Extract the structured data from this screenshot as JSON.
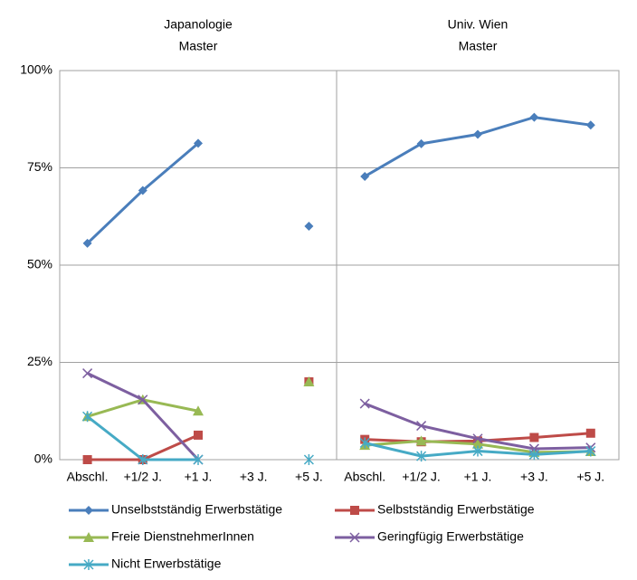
{
  "chart_data": {
    "type": "line",
    "categories": [
      "Abschl.",
      "+1/2 J.",
      "+1 J.",
      "+3 J.",
      "+5 J."
    ],
    "ylim": [
      0,
      100
    ],
    "yticks": [
      {
        "value": 0,
        "label": "0%"
      },
      {
        "value": 25,
        "label": "25%"
      },
      {
        "value": 50,
        "label": "50%"
      },
      {
        "value": 75,
        "label": "75%"
      },
      {
        "value": 100,
        "label": "100%"
      }
    ],
    "grid": true,
    "series": [
      {
        "name": "Unselbstständig Erwerbstätige",
        "color": "#4a7ebb",
        "marker": "diamond"
      },
      {
        "name": "Selbstständig Erwerbstätige",
        "color": "#be4b48",
        "marker": "square"
      },
      {
        "name": "Freie DienstnehmerInnen",
        "color": "#98b954",
        "marker": "triangle"
      },
      {
        "name": "Geringfügig Erwerbstätige",
        "color": "#7d5fa0",
        "marker": "x"
      },
      {
        "name": "Nicht Erwerbstätige",
        "color": "#46aac5",
        "marker": "star"
      }
    ],
    "panels": [
      {
        "title": [
          "Japanologie",
          "Master"
        ],
        "values": [
          [
            55.6,
            69.2,
            81.3,
            null,
            60
          ],
          [
            0,
            0,
            6.3,
            null,
            20
          ],
          [
            11.1,
            15.4,
            12.5,
            null,
            20
          ],
          [
            22.2,
            15.4,
            0,
            null,
            null
          ],
          [
            11.1,
            0,
            0,
            null,
            0
          ]
        ]
      },
      {
        "title": [
          "Univ. Wien",
          "Master"
        ],
        "values": [
          [
            72.8,
            81.2,
            83.6,
            88,
            86
          ],
          [
            5.2,
            4.6,
            4.8,
            5.7,
            6.8
          ],
          [
            3.7,
            4.8,
            4.0,
            1.9,
            2.1
          ],
          [
            14.4,
            8.7,
            5.4,
            2.8,
            3.1
          ],
          [
            4.3,
            0.9,
            2.2,
            1.3,
            2.2
          ]
        ]
      }
    ]
  }
}
